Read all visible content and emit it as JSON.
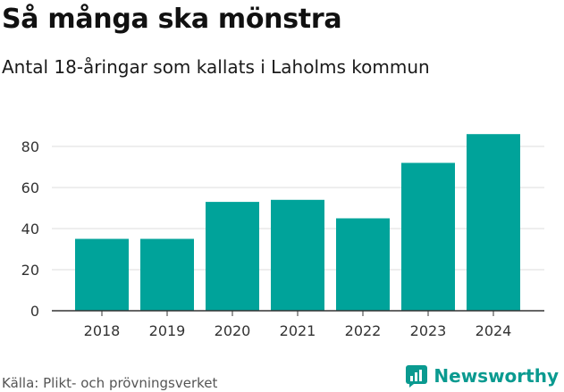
{
  "header": {
    "title": "Så många ska mönstra",
    "subtitle": "Antal 18-åringar som kallats i Laholms kommun"
  },
  "footer": {
    "source": "Källa: Plikt- och prövningsverket",
    "brand": "Newsworthy"
  },
  "colors": {
    "bar": "#00a39a",
    "grid": "#dddddd",
    "axis": "#333333",
    "brand": "#0a9a90"
  },
  "chart_data": {
    "type": "bar",
    "title": "Så många ska mönstra",
    "subtitle": "Antal 18-åringar som kallats i Laholms kommun",
    "categories": [
      "2018",
      "2019",
      "2020",
      "2021",
      "2022",
      "2023",
      "2024"
    ],
    "values": [
      35,
      35,
      53,
      54,
      45,
      72,
      86
    ],
    "xlabel": "",
    "ylabel": "",
    "ylim": [
      0,
      90
    ],
    "yticks": [
      0,
      20,
      40,
      60,
      80
    ],
    "grid": true,
    "legend": "none"
  }
}
